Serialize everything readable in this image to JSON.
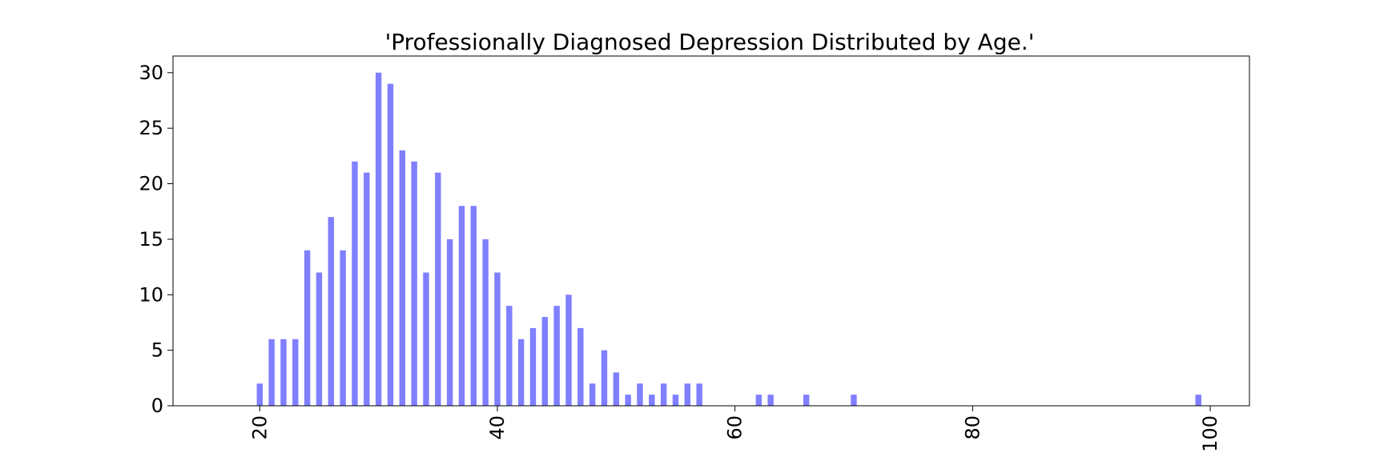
{
  "chart_data": {
    "type": "bar",
    "title": "'Professionally Diagnosed Depression Distributed by Age.'",
    "xlabel": "",
    "ylabel": "",
    "x": [
      20,
      21,
      22,
      23,
      24,
      25,
      26,
      27,
      28,
      29,
      30,
      31,
      32,
      33,
      34,
      35,
      36,
      37,
      38,
      39,
      40,
      41,
      42,
      43,
      44,
      45,
      46,
      47,
      48,
      49,
      50,
      51,
      52,
      53,
      54,
      55,
      56,
      57,
      62,
      63,
      66,
      70,
      99
    ],
    "values": [
      2,
      6,
      6,
      6,
      14,
      12,
      17,
      14,
      22,
      21,
      30,
      29,
      23,
      22,
      12,
      21,
      15,
      18,
      18,
      15,
      12,
      9,
      6,
      7,
      8,
      9,
      10,
      7,
      2,
      5,
      3,
      1,
      2,
      1,
      2,
      1,
      2,
      2,
      1,
      1,
      1,
      1,
      1
    ],
    "xlim": [
      12.7,
      103.3
    ],
    "ylim": [
      0,
      31.5
    ],
    "x_ticks": [
      20,
      40,
      60,
      80,
      100
    ],
    "y_ticks": [
      0,
      5,
      10,
      15,
      20,
      25,
      30
    ],
    "x_tick_labels": [
      "20",
      "40",
      "60",
      "80",
      "100"
    ],
    "y_tick_labels": [
      "0",
      "5",
      "10",
      "15",
      "20",
      "25",
      "30"
    ],
    "x_tick_rotation": 90,
    "bar_color": "#7f7fff",
    "grid": false,
    "legend": "none"
  }
}
